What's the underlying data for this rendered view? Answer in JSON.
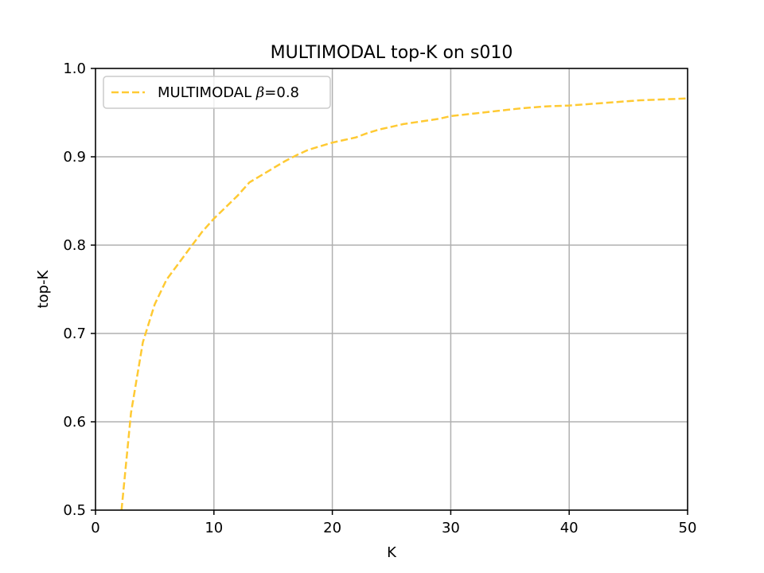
{
  "chart_data": {
    "type": "line",
    "title": "MULTIMODAL top-K on s010",
    "xlabel": "K",
    "ylabel": "top-K",
    "xlim": [
      0,
      50
    ],
    "ylim": [
      0.5,
      1.0
    ],
    "xticks": [
      "0",
      "10",
      "20",
      "30",
      "40",
      "50"
    ],
    "yticks": [
      "0.5",
      "0.6",
      "0.7",
      "0.8",
      "0.9",
      "1.0"
    ],
    "grid": true,
    "legend_position": "upper-left",
    "series": [
      {
        "name_prefix": "MULTIMODAL ",
        "name_symbol": "β",
        "name_suffix": "=0.8",
        "color": "#ffca33",
        "linestyle": "dashed",
        "x": [
          2.2,
          3,
          4,
          5,
          6,
          7,
          8,
          9,
          10,
          11,
          12,
          13,
          14,
          15,
          16,
          17,
          18,
          19,
          20,
          21,
          22,
          23,
          24,
          25,
          26,
          27,
          28,
          29,
          30,
          32,
          34,
          36,
          38,
          40,
          42,
          44,
          46,
          48,
          50
        ],
        "y": [
          0.5,
          0.61,
          0.69,
          0.733,
          0.761,
          0.779,
          0.797,
          0.815,
          0.83,
          0.843,
          0.856,
          0.871,
          0.879,
          0.887,
          0.895,
          0.902,
          0.908,
          0.912,
          0.916,
          0.919,
          0.922,
          0.927,
          0.931,
          0.934,
          0.937,
          0.939,
          0.941,
          0.943,
          0.946,
          0.949,
          0.952,
          0.955,
          0.957,
          0.958,
          0.96,
          0.962,
          0.964,
          0.965,
          0.966
        ]
      }
    ]
  }
}
